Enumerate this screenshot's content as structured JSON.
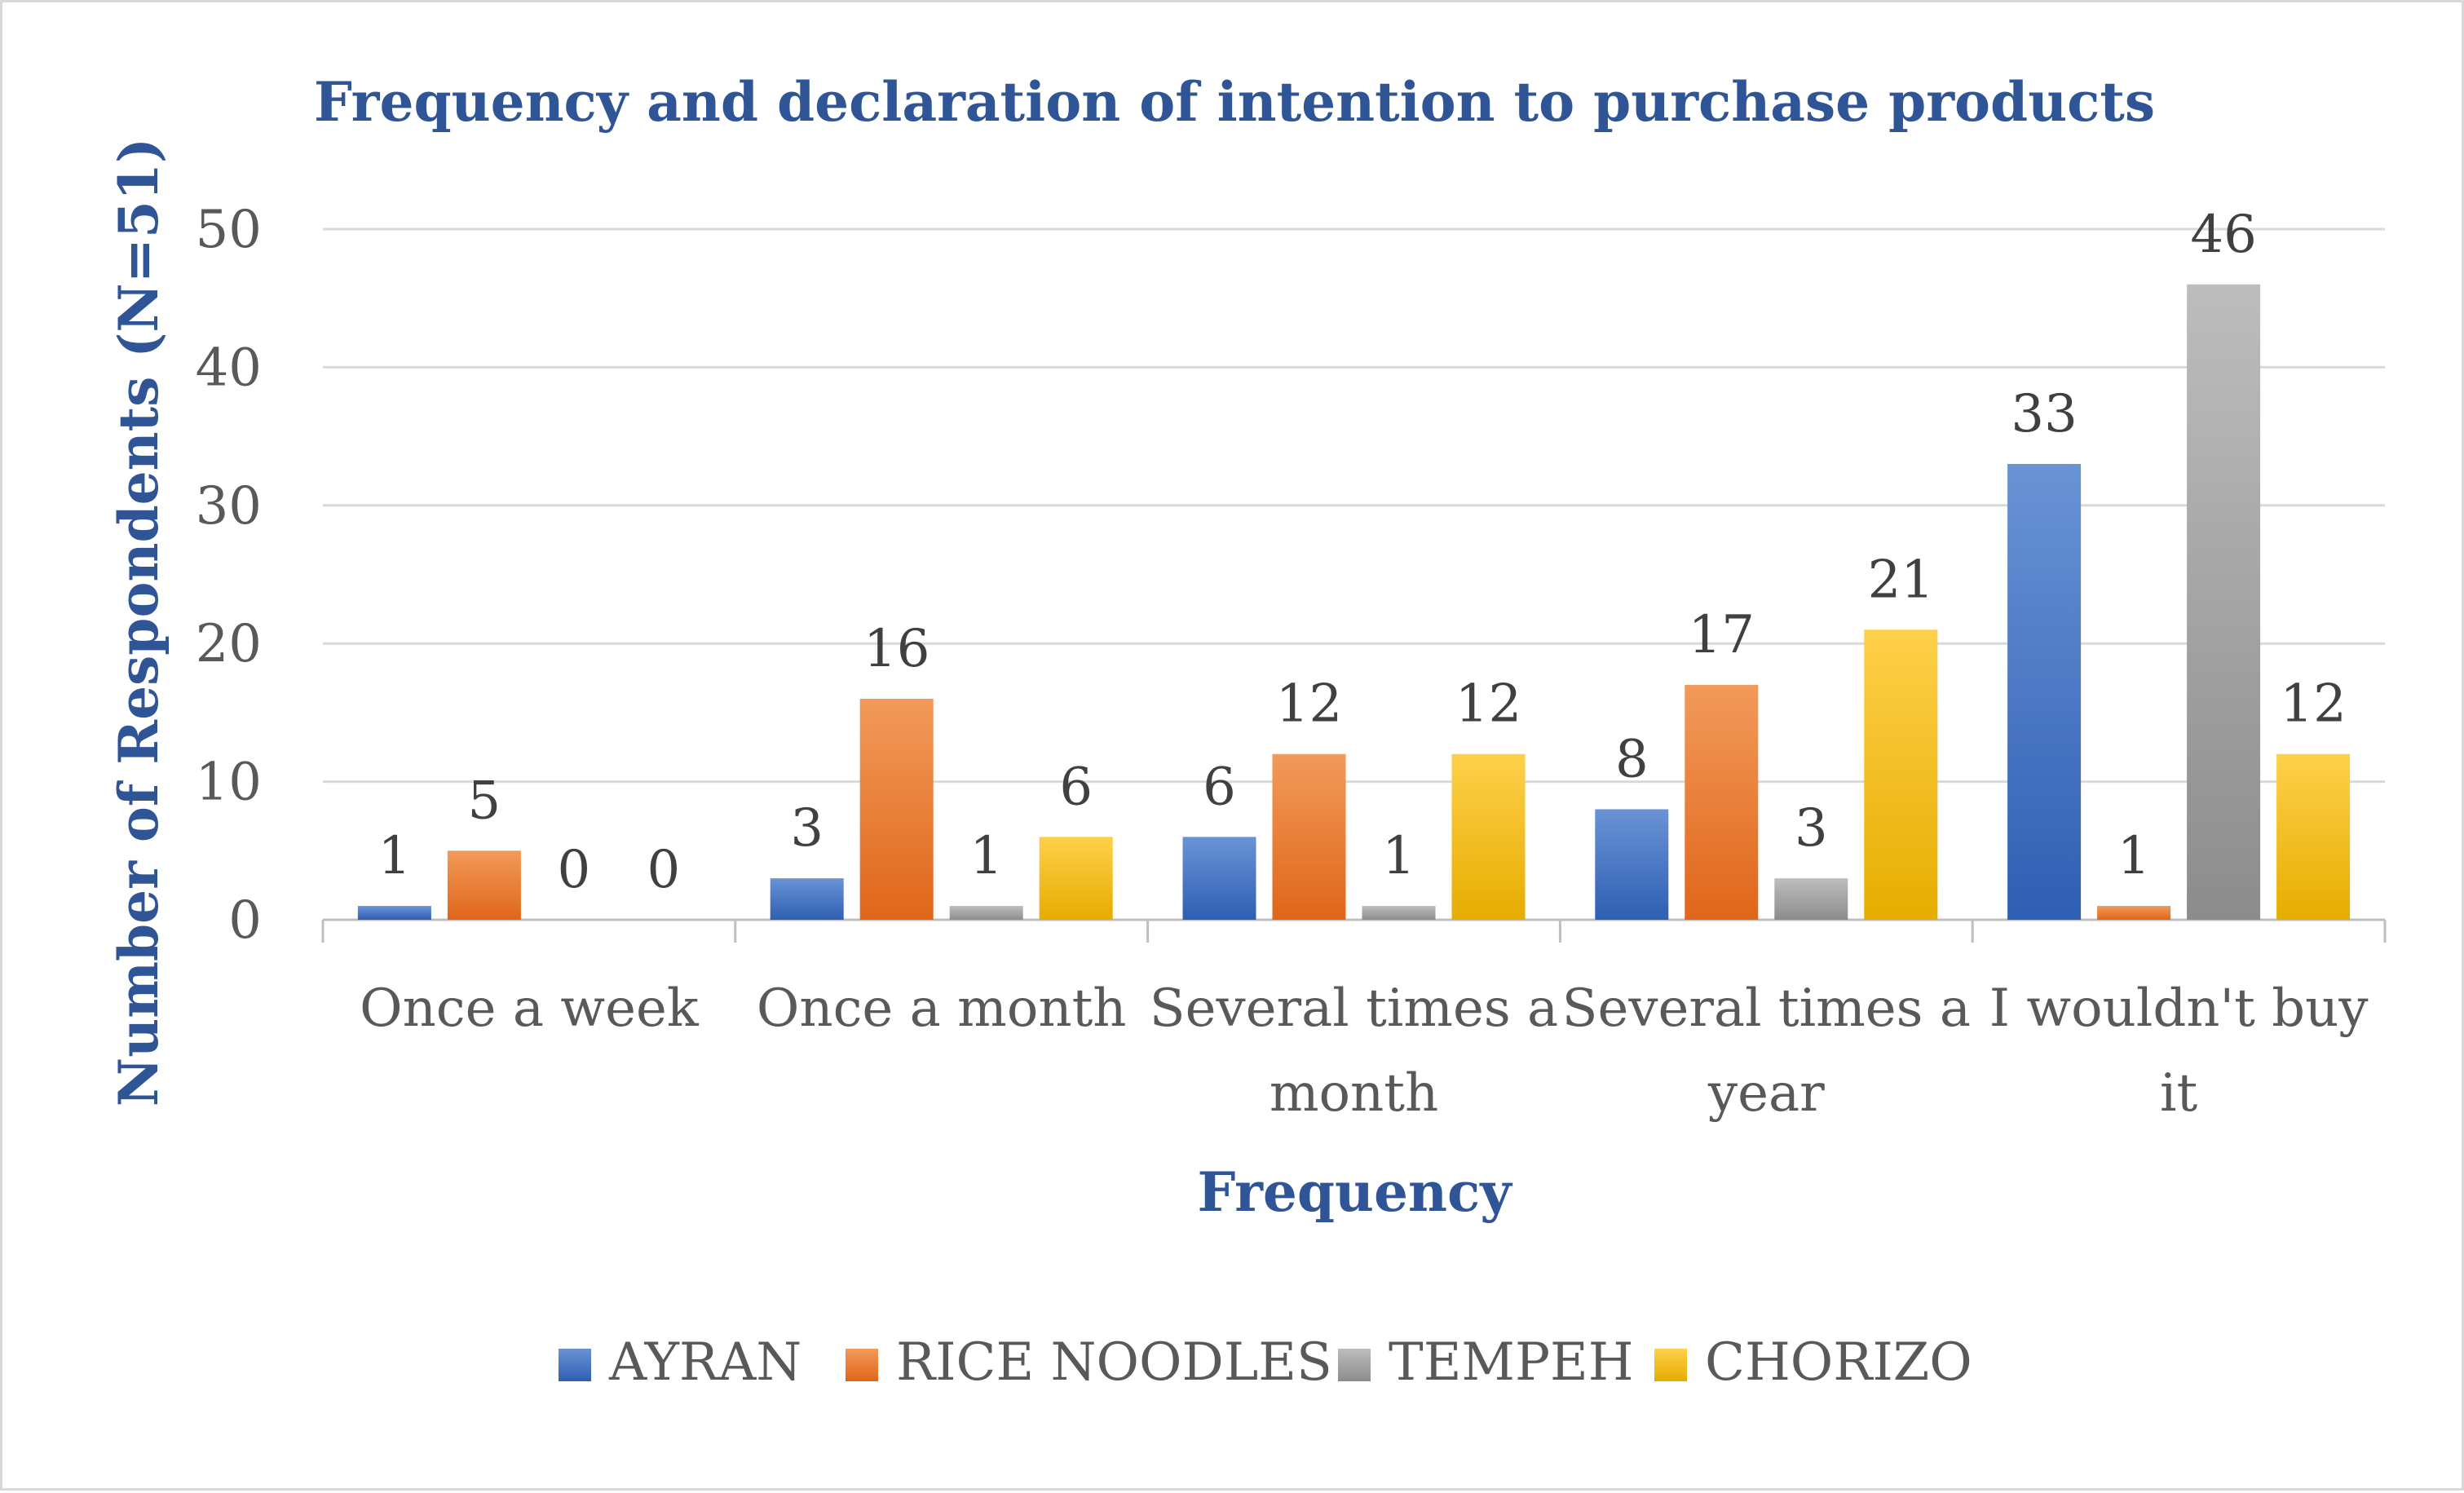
{
  "chart_data": {
    "type": "bar",
    "title": "Frequency and declaration of intention to purchase products",
    "xlabel": "Frequency",
    "ylabel": "Number of Respondents (N=51)",
    "ylim": [
      0,
      50
    ],
    "yticks": [
      0,
      10,
      20,
      30,
      40,
      50
    ],
    "grid": true,
    "legend_position": "bottom",
    "categories": [
      [
        "Once a week"
      ],
      [
        "Once a month"
      ],
      [
        "Several times a",
        "month"
      ],
      [
        "Several times a",
        "year"
      ],
      [
        "I wouldn't buy",
        "it"
      ]
    ],
    "category_names": [
      "Once a week",
      "Once a month",
      "Several times a month",
      "Several times a year",
      "I wouldn't buy it"
    ],
    "series": [
      {
        "name": "AYRAN",
        "color": "#4472c4",
        "colorDark": "#2f5fb3",
        "colorLight": "#6a93d6",
        "values": [
          1,
          3,
          6,
          8,
          33
        ]
      },
      {
        "name": "RICE NOODLES",
        "color": "#ed7d31",
        "colorDark": "#e0661a",
        "colorLight": "#f29a5a",
        "values": [
          5,
          16,
          12,
          17,
          1
        ]
      },
      {
        "name": "TEMPEH",
        "color": "#a5a5a5",
        "colorDark": "#8c8c8c",
        "colorLight": "#bdbdbd",
        "values": [
          0,
          1,
          1,
          3,
          46
        ]
      },
      {
        "name": "CHORIZO",
        "color": "#ffc000",
        "colorDark": "#e6ad00",
        "colorLight": "#ffd04a",
        "values": [
          0,
          6,
          12,
          21,
          12
        ]
      }
    ]
  }
}
